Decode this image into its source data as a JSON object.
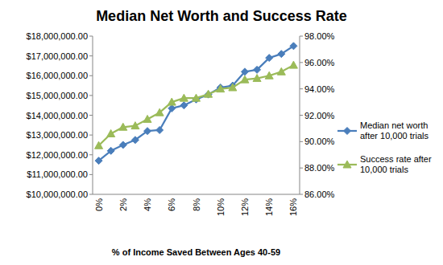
{
  "chart_data": {
    "type": "line",
    "title": "Median Net Worth and Success Rate",
    "x_label": "% of Income Saved Between Ages 40-59",
    "categories": [
      "0%",
      null,
      "2%",
      null,
      "4%",
      null,
      "6%",
      null,
      "8%",
      null,
      "10%",
      null,
      "12%",
      null,
      "14%",
      null,
      "16%"
    ],
    "ylim": [
      10000000,
      18000000
    ],
    "yticks": [
      {
        "value": 10000000,
        "label": "$10,000,000.00"
      },
      {
        "value": 11000000,
        "label": "$11,000,000.00"
      },
      {
        "value": 12000000,
        "label": "$12,000,000.00"
      },
      {
        "value": 13000000,
        "label": "$13,000,000.00"
      },
      {
        "value": 14000000,
        "label": "$14,000,000.00"
      },
      {
        "value": 15000000,
        "label": "$15,000,000.00"
      },
      {
        "value": 16000000,
        "label": "$16,000,000.00"
      },
      {
        "value": 17000000,
        "label": "$17,000,000.00"
      },
      {
        "value": 18000000,
        "label": "$18,000,000.00"
      }
    ],
    "y2lim": [
      86,
      98
    ],
    "y2ticks": [
      {
        "value": 86,
        "label": "86.00%"
      },
      {
        "value": 88,
        "label": "88.00%"
      },
      {
        "value": 90,
        "label": "90.00%"
      },
      {
        "value": 92,
        "label": "92.00%"
      },
      {
        "value": 94,
        "label": "94.00%"
      },
      {
        "value": 96,
        "label": "96.00%"
      },
      {
        "value": 98,
        "label": "98.00%"
      }
    ],
    "grid": false,
    "legend": "right",
    "series": [
      {
        "name": "Median net worth after 10,000 trials",
        "color": "#4a7ebb",
        "marker": "diamond",
        "line_style": "solid",
        "values": [
          11700000,
          12200000,
          12500000,
          12750000,
          13200000,
          13250000,
          14350000,
          14500000,
          14800000,
          15050000,
          15400000,
          15500000,
          16200000,
          16300000,
          16900000,
          17100000,
          17500000
        ]
      },
      {
        "name": "Success rate after 10,000 trials",
        "color": "#9bbb59",
        "marker": "triangle",
        "line_style": "solid",
        "axis": "y2",
        "values": [
          89.7,
          90.6,
          91.1,
          91.2,
          91.7,
          92.2,
          93.0,
          93.3,
          93.3,
          93.6,
          94.0,
          94.1,
          94.7,
          94.8,
          95.0,
          95.3,
          95.8
        ]
      }
    ]
  }
}
